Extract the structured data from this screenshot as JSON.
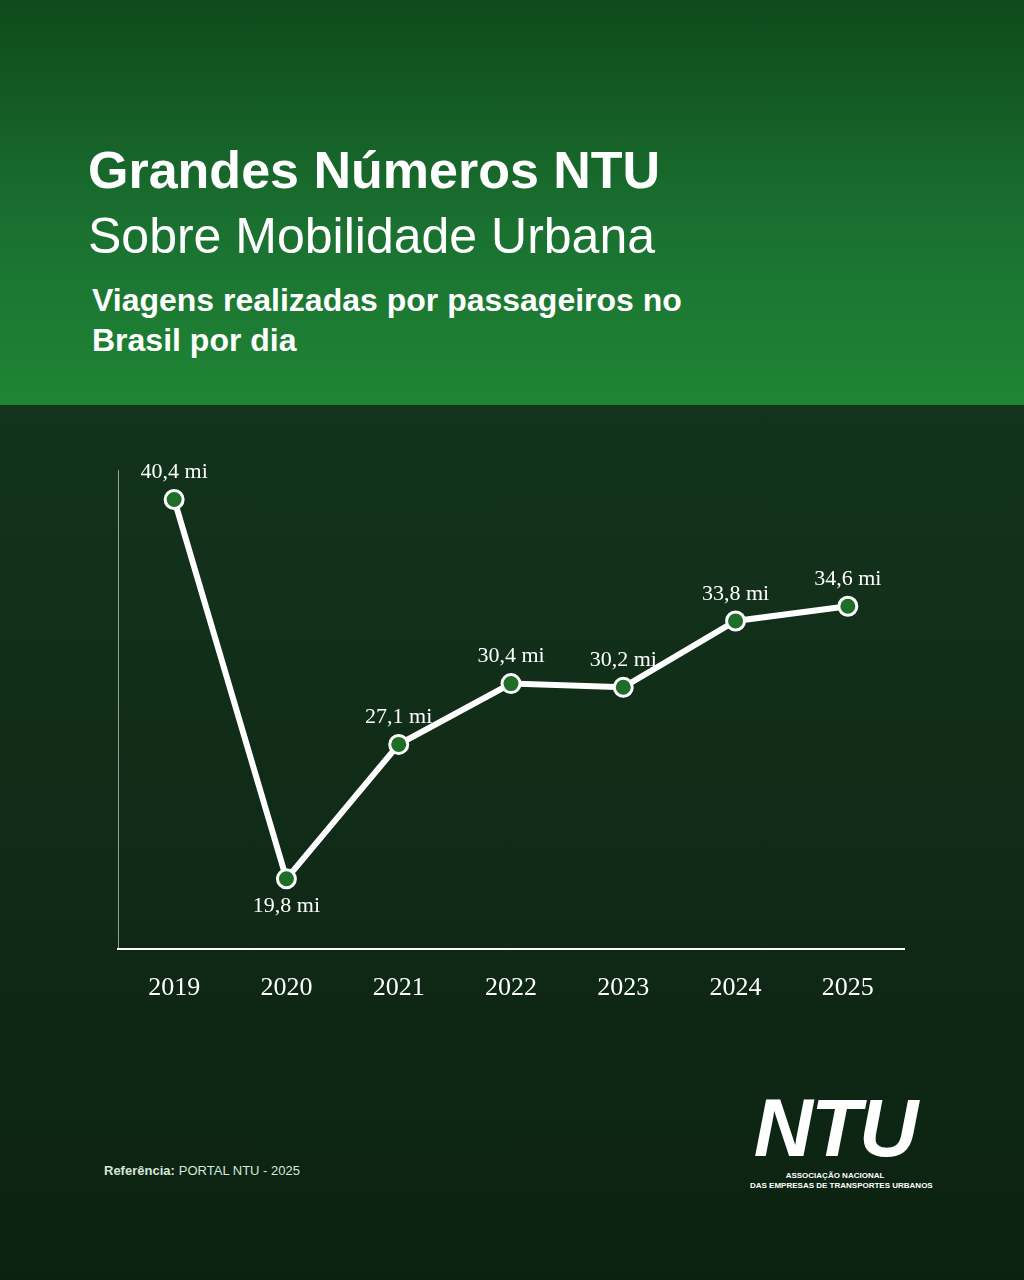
{
  "chart_data": {
    "type": "line",
    "title": "Grandes Números NTU",
    "subtitle": "Sobre Mobilidade Urbana",
    "caption": "Viagens realizadas por passageiros no Brasil por dia",
    "categories": [
      "2019",
      "2020",
      "2021",
      "2022",
      "2023",
      "2024",
      "2025"
    ],
    "values": [
      40.4,
      19.8,
      27.1,
      30.4,
      30.2,
      33.8,
      34.6
    ],
    "value_labels": [
      "40,4 mi",
      "19,8 mi",
      "27,1 mi",
      "30,4 mi",
      "30,2 mi",
      "33,8 mi",
      "34,6 mi"
    ],
    "data_labels": true,
    "color": "#ffffff",
    "marker": "circle",
    "line_style": "solid",
    "ylim": [
      16,
      42
    ],
    "grid": false,
    "tick_labels": "x"
  },
  "source": {
    "label": "Referência:",
    "text": "PORTAL NTU - 2025"
  },
  "logo": {
    "text": "NTU",
    "caption": [
      "ASSOCIAÇÃO NACIONAL",
      "DAS EMPRESAS DE TRANSPORTES URBANOS"
    ]
  }
}
